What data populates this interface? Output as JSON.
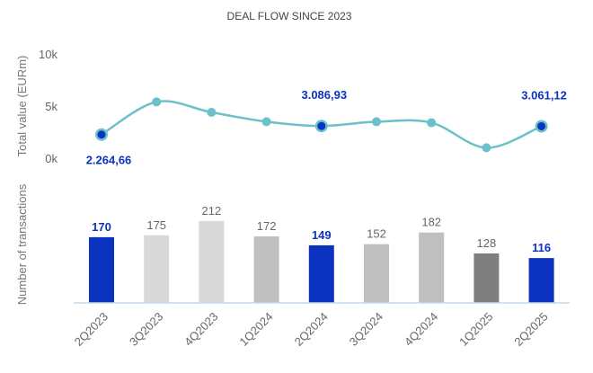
{
  "chart_data": [
    {
      "type": "line",
      "title": "DEAL FLOW SINCE 2023",
      "ylabel": "Total value (EURm)",
      "yticks": [
        "0k",
        "5k",
        "10k"
      ],
      "ylim": [
        0,
        10000
      ],
      "categories": [
        "2Q2023",
        "3Q2023",
        "4Q2023",
        "1Q2024",
        "2Q2024",
        "3Q2024",
        "4Q2024",
        "1Q2025",
        "2Q2025"
      ],
      "values": [
        2264.66,
        5400,
        4400,
        3500,
        3086.93,
        3500,
        3400,
        1000,
        3061.12
      ],
      "highlighted": [
        true,
        false,
        false,
        false,
        true,
        false,
        false,
        false,
        true
      ],
      "data_labels": [
        "2.264,66",
        "",
        "",
        "",
        "3.086,93",
        "",
        "",
        "",
        "3.061,12"
      ],
      "color": "#6bc1c9",
      "highlight_color": "#0b33bf"
    },
    {
      "type": "bar",
      "ylabel": "Number of transactions",
      "categories": [
        "2Q2023",
        "3Q2023",
        "4Q2023",
        "1Q2024",
        "2Q2024",
        "3Q2024",
        "4Q2024",
        "1Q2025",
        "2Q2025"
      ],
      "values": [
        170,
        175,
        212,
        172,
        149,
        152,
        182,
        128,
        116
      ],
      "data_labels": [
        "170",
        "175",
        "212",
        "172",
        "149",
        "152",
        "182",
        "128",
        "116"
      ],
      "highlighted": [
        true,
        false,
        false,
        false,
        true,
        false,
        false,
        false,
        true
      ],
      "colors": [
        "#0b33bf",
        "#d9d9d9",
        "#d9d9d9",
        "#bfbfbf",
        "#0b33bf",
        "#bfbfbf",
        "#bfbfbf",
        "#7f7f7f",
        "#0b33bf"
      ]
    }
  ]
}
